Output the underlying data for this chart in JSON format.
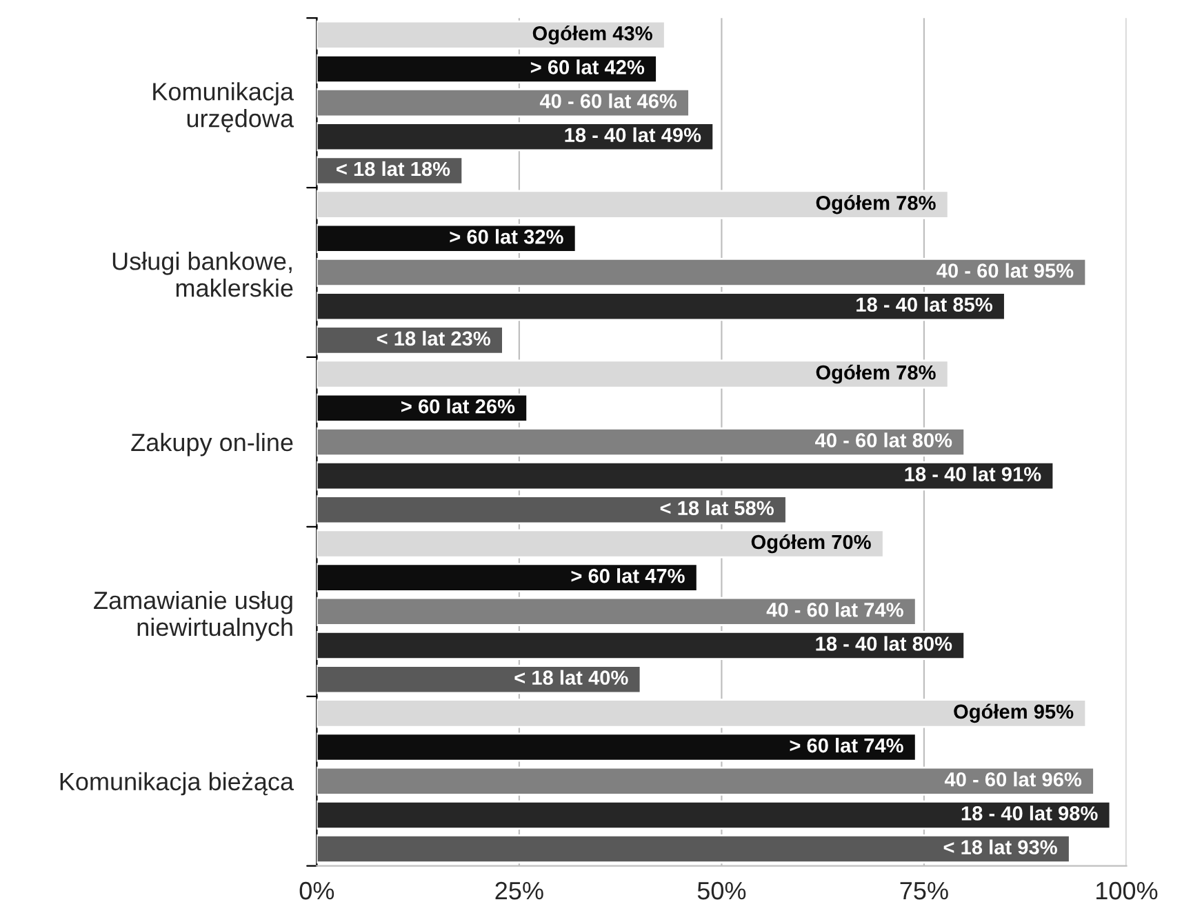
{
  "chart_data": {
    "type": "bar",
    "orientation": "horizontal",
    "categories": [
      "Komunikacja\nurzędowa",
      "Usługi bankowe,\nmaklerskie",
      "Zakupy on-line",
      "Zamawianie usług\nniewirtualnych",
      "Komunikacja bieżąca"
    ],
    "series": [
      {
        "color": "#d9d9d9",
        "values": [
          43,
          78,
          78,
          70,
          95
        ],
        "value_labels": [
          "Ogółem 43%",
          "Ogółem 78%",
          "Ogółem 78%",
          "Ogółem 70%",
          "Ogółem 95%"
        ]
      },
      {
        "color": "#0d0d0d",
        "values": [
          42,
          32,
          26,
          47,
          74
        ],
        "value_labels": [
          "> 60 lat 42%",
          "> 60 lat 32%",
          "> 60 lat 26%",
          "> 60 lat 47%",
          "> 60 lat 74%"
        ]
      },
      {
        "color": "#808080",
        "values": [
          46,
          95,
          80,
          74,
          96
        ],
        "value_labels": [
          "40 - 60 lat 46%",
          "40 - 60 lat 95%",
          "40 - 60 lat 80%",
          "40 - 60 lat 74%",
          "40 - 60 lat 96%"
        ]
      },
      {
        "color": "#262626",
        "values": [
          49,
          85,
          91,
          80,
          98
        ],
        "value_labels": [
          "18 - 40 lat 49%",
          "18 - 40 lat 85%",
          "18 - 40 lat 91%",
          "18 - 40 lat 80%",
          "18 - 40 lat 98%"
        ]
      },
      {
        "color": "#595959",
        "values": [
          18,
          23,
          58,
          40,
          93
        ],
        "value_labels": [
          "< 18 lat 18%",
          "< 18 lat 23%",
          "< 18 lat 58%",
          "< 18 lat 40%",
          "< 18 lat 93%"
        ]
      }
    ],
    "xlim": [
      0,
      100
    ],
    "xticks": [
      {
        "value": 0,
        "label": "0%"
      },
      {
        "value": 25,
        "label": "25%"
      },
      {
        "value": 50,
        "label": "50%"
      },
      {
        "value": 75,
        "label": "75%"
      },
      {
        "value": 100,
        "label": "100%"
      }
    ],
    "grid": "x",
    "legend": false
  }
}
